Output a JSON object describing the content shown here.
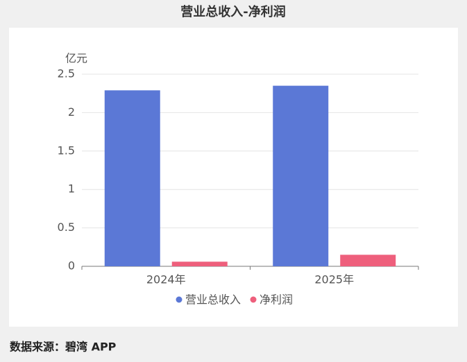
{
  "chart_data": {
    "type": "bar",
    "title": "营业总收入-净利润",
    "y_unit": "亿元",
    "categories": [
      "2024年",
      "2025年"
    ],
    "series": [
      {
        "name": "营业总收入",
        "color": "#5b78d6",
        "values": [
          2.29,
          2.35
        ]
      },
      {
        "name": "净利润",
        "color": "#ee5f7c",
        "values": [
          0.06,
          0.15
        ]
      }
    ],
    "ylim": [
      0,
      2.5
    ],
    "yticks": [
      0,
      0.5,
      1,
      1.5,
      2,
      2.5
    ],
    "grid": true,
    "legend": "bottom",
    "source": "数据来源：碧湾 APP"
  }
}
